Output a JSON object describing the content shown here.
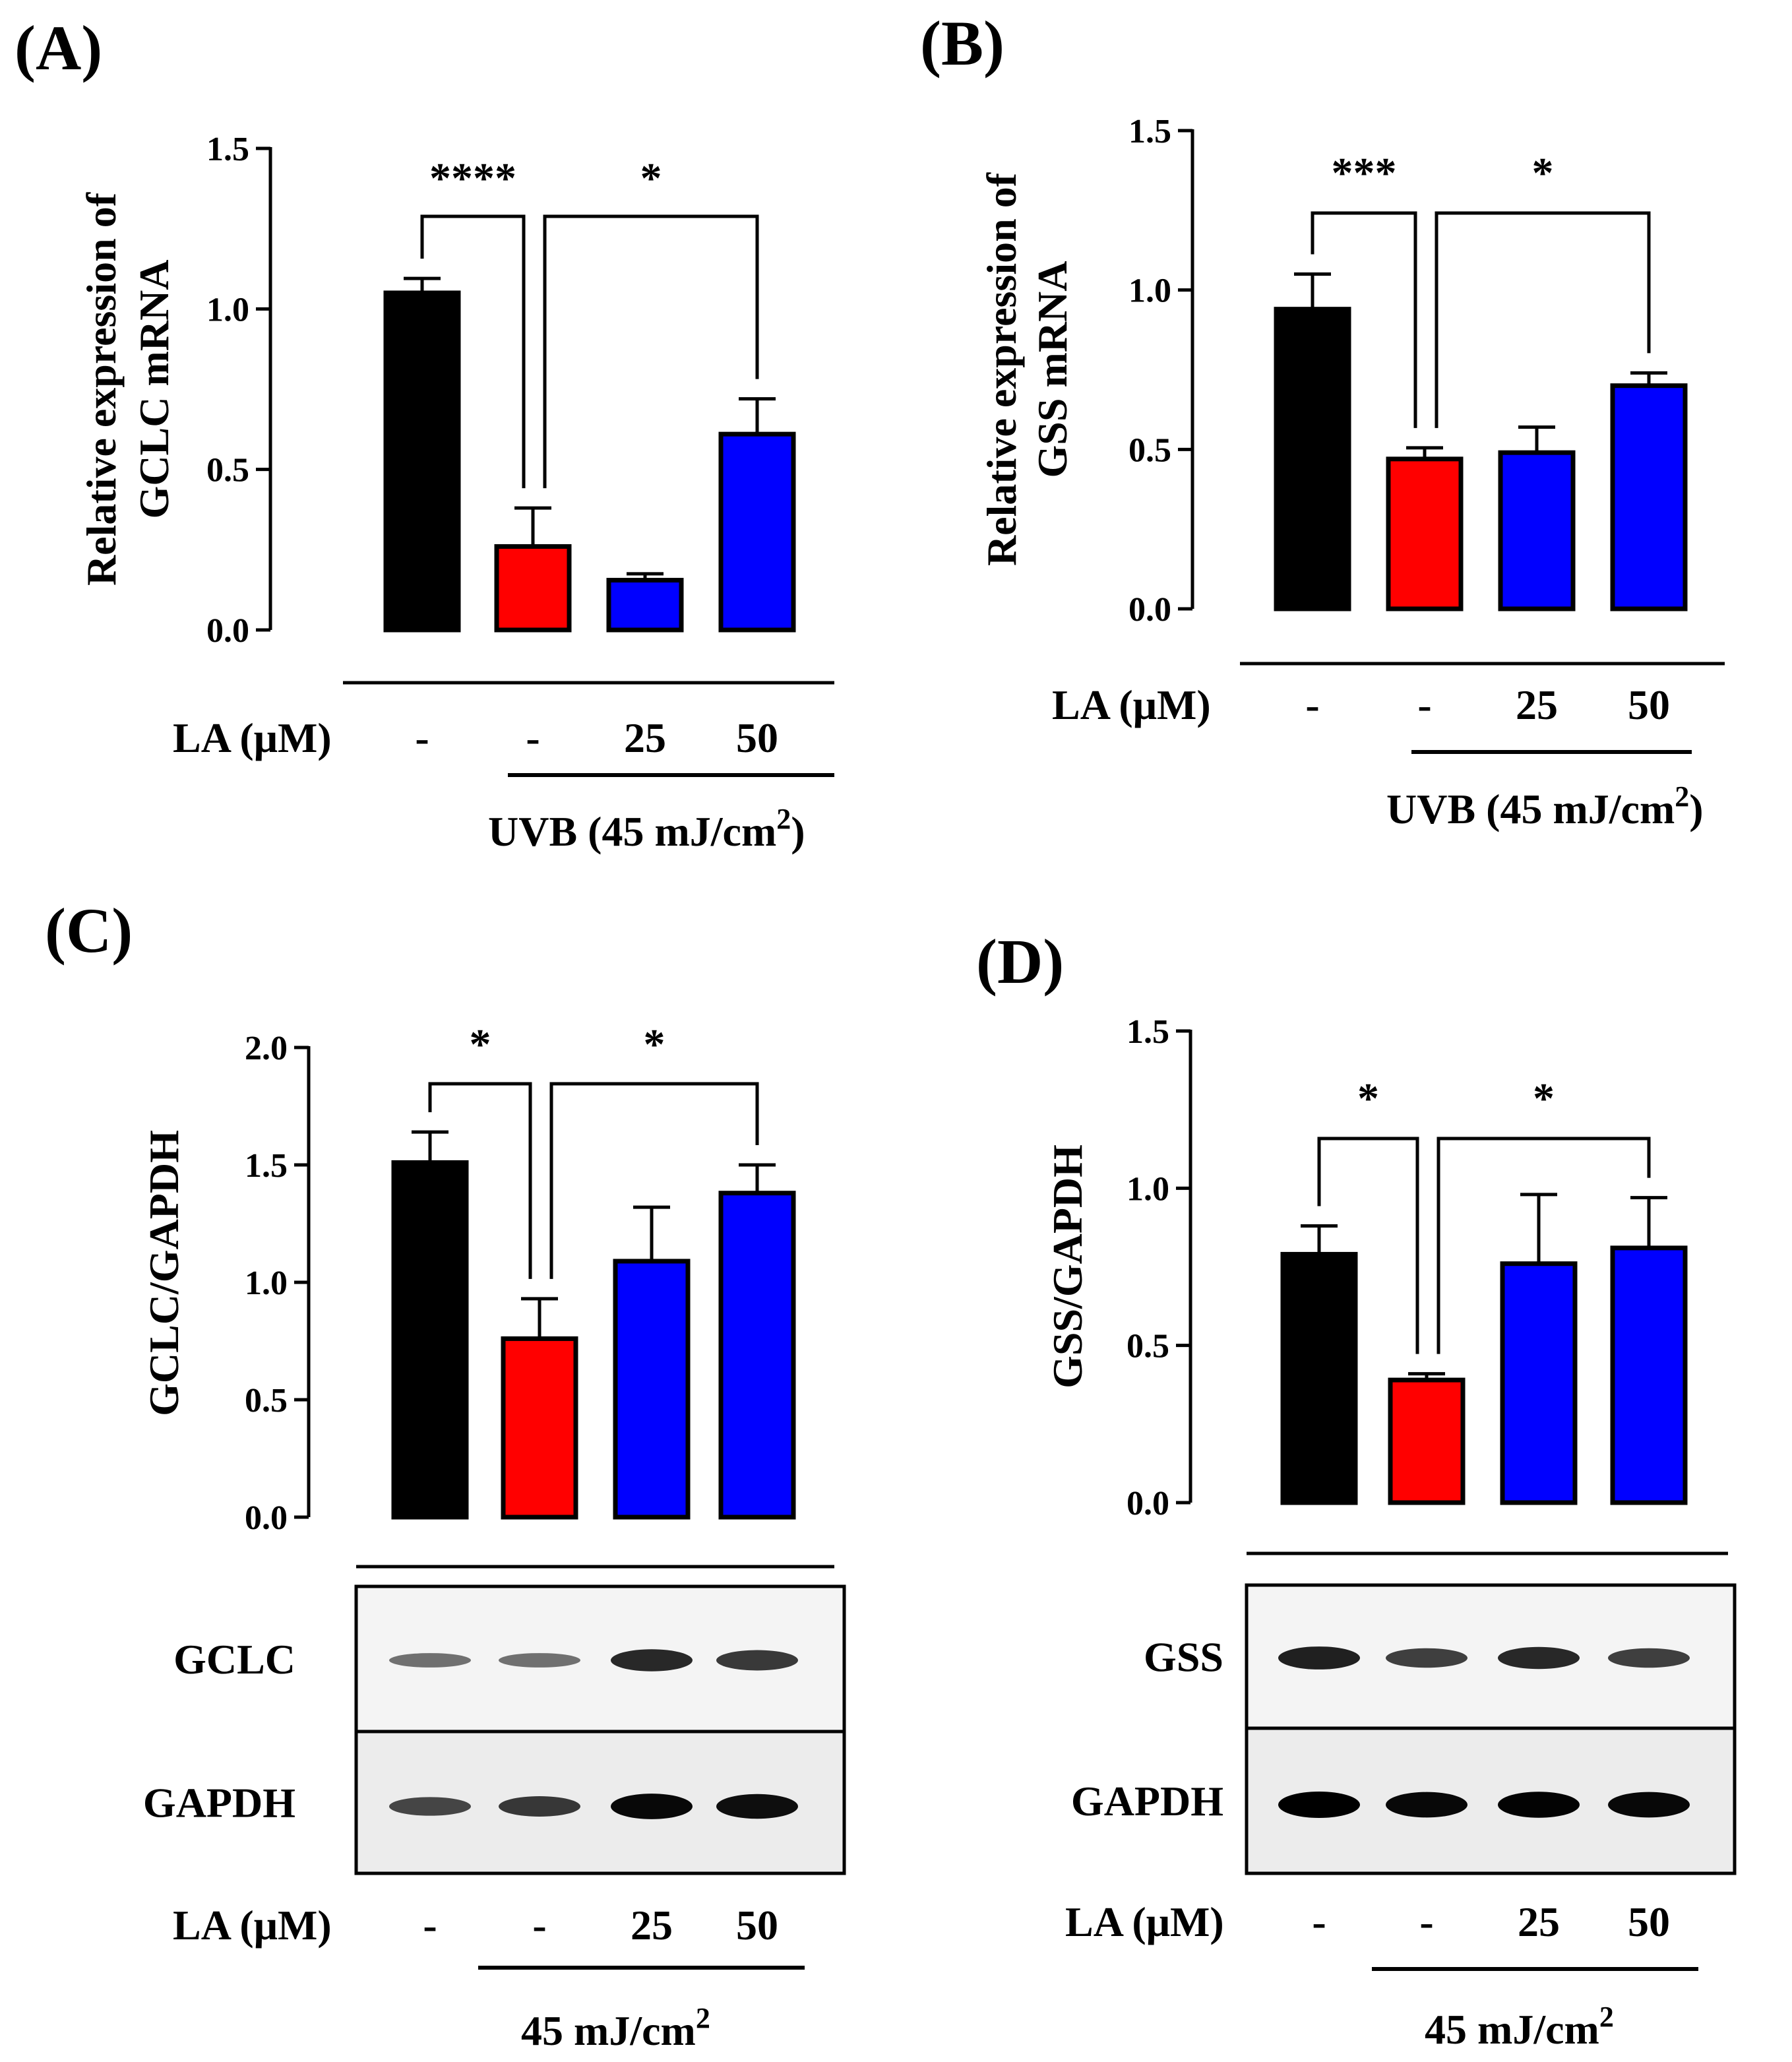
{
  "colors": {
    "control": "#000000",
    "uvb": "#ff0000",
    "la": "#0000ff",
    "axis": "#000000"
  },
  "chart_data": [
    {
      "panel": "(A)",
      "type": "bar",
      "ylabel_lines": [
        "Relative expression of",
        "GCLC mRNA"
      ],
      "ylim": [
        0,
        1.5
      ],
      "yticks": [
        "0.0",
        "0.5",
        "1.0",
        "1.5"
      ],
      "la_label": "LA (μM)",
      "la_values": [
        "-",
        "-",
        "25",
        "50"
      ],
      "uvb_label": "UVB (45 mJ/cm",
      "uvb_sup": "2",
      "uvb_close": ")",
      "values": [
        1.05,
        0.26,
        0.155,
        0.61
      ],
      "errors": [
        0.045,
        0.12,
        0.02,
        0.11
      ],
      "colors": [
        "#000000",
        "#ff0000",
        "#0000ff",
        "#0000ff"
      ],
      "significance": [
        {
          "from": 0,
          "to": 1,
          "label": "****"
        },
        {
          "from": 1,
          "to": 3,
          "label": "*"
        }
      ]
    },
    {
      "panel": "(B)",
      "type": "bar",
      "ylabel_lines": [
        "Relative expression of",
        "GSS mRNA"
      ],
      "ylim": [
        0,
        1.5
      ],
      "yticks": [
        "0.0",
        "0.5",
        "1.0",
        "1.5"
      ],
      "la_label": "LA (μM)",
      "la_values": [
        "-",
        "-",
        "25",
        "50"
      ],
      "uvb_label": "UVB (45 mJ/cm",
      "uvb_sup": "2",
      "uvb_close": ")",
      "values": [
        0.94,
        0.47,
        0.49,
        0.7
      ],
      "errors": [
        0.11,
        0.035,
        0.08,
        0.04
      ],
      "colors": [
        "#000000",
        "#ff0000",
        "#0000ff",
        "#0000ff"
      ],
      "significance": [
        {
          "from": 0,
          "to": 1,
          "label": "***"
        },
        {
          "from": 1,
          "to": 3,
          "label": "*"
        }
      ]
    },
    {
      "panel": "(C)",
      "type": "bar",
      "ylabel_lines": [
        "GCLC/GAPDH"
      ],
      "ylim": [
        0,
        2.0
      ],
      "yticks": [
        "0.0",
        "0.5",
        "1.0",
        "1.5",
        "2.0"
      ],
      "la_label": "LA (μM)",
      "la_values": [
        "-",
        "-",
        "25",
        "50"
      ],
      "uvb_label": "45 mJ/cm",
      "uvb_sup": "2",
      "uvb_close": "",
      "values": [
        1.51,
        0.76,
        1.09,
        1.38
      ],
      "errors": [
        0.13,
        0.17,
        0.23,
        0.12
      ],
      "colors": [
        "#000000",
        "#ff0000",
        "#0000ff",
        "#0000ff"
      ],
      "significance": [
        {
          "from": 0,
          "to": 1,
          "label": "*"
        },
        {
          "from": 1,
          "to": 3,
          "label": "*"
        }
      ],
      "blots": [
        {
          "name": "GCLC",
          "band_intensity": [
            0.3,
            0.3,
            0.75,
            0.65
          ]
        },
        {
          "name": "GAPDH",
          "band_intensity": [
            0.55,
            0.65,
            0.95,
            0.9
          ]
        }
      ]
    },
    {
      "panel": "(D)",
      "type": "bar",
      "ylabel_lines": [
        "GSS/GAPDH"
      ],
      "ylim": [
        0,
        1.5
      ],
      "yticks": [
        "0.0",
        "0.5",
        "1.0",
        "1.5"
      ],
      "la_label": "LA (μM)",
      "la_values": [
        "-",
        "-",
        "25",
        "50"
      ],
      "uvb_label": "45 mJ/cm",
      "uvb_sup": "2",
      "uvb_close": "",
      "values": [
        0.79,
        0.39,
        0.76,
        0.81
      ],
      "errors": [
        0.09,
        0.02,
        0.22,
        0.16
      ],
      "colors": [
        "#000000",
        "#ff0000",
        "#0000ff",
        "#0000ff"
      ],
      "significance": [
        {
          "from": 0,
          "to": 1,
          "label": "*"
        },
        {
          "from": 1,
          "to": 3,
          "label": "*"
        }
      ],
      "blots": [
        {
          "name": "GSS",
          "band_intensity": [
            0.8,
            0.6,
            0.75,
            0.6
          ]
        },
        {
          "name": "GAPDH",
          "band_intensity": [
            1.0,
            0.95,
            0.98,
            0.95
          ]
        }
      ]
    }
  ]
}
